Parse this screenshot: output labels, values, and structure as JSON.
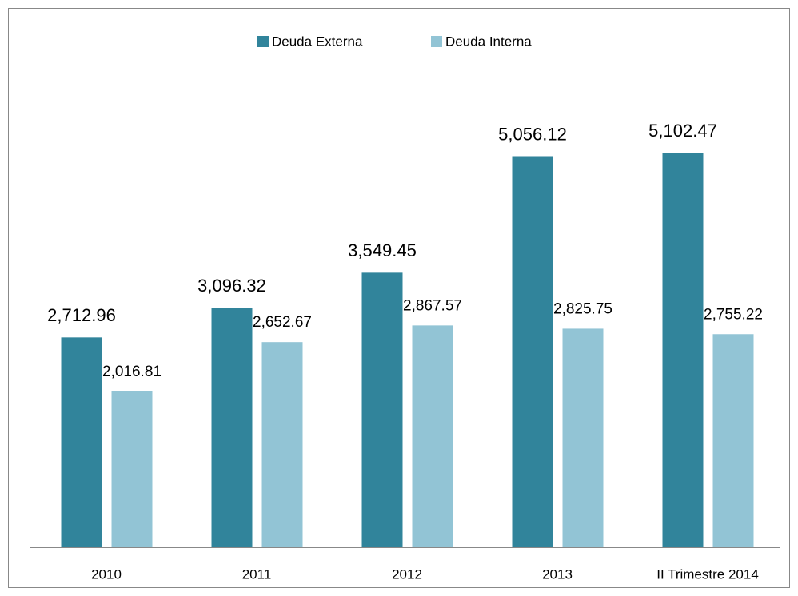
{
  "chart_data": {
    "type": "bar",
    "categories": [
      "2010",
      "2011",
      "2012",
      "2013",
      "II Trimestre 2014"
    ],
    "series": [
      {
        "name": "Deuda Externa",
        "color": "#31849b",
        "values": [
          2712.96,
          3096.32,
          3549.45,
          5056.12,
          5102.47
        ],
        "value_labels": [
          "2,712.96",
          "3,096.32",
          "3,549.45",
          "5,056.12",
          "5,102.47"
        ]
      },
      {
        "name": "Deuda Interna",
        "color": "#92c4d5",
        "values": [
          2016.81,
          2652.67,
          2867.57,
          2825.75,
          2755.22
        ],
        "value_labels": [
          "2,016.81",
          "2,652.67",
          "2,867.57",
          "2,825.75",
          "2,755.22"
        ]
      }
    ],
    "legend": "top"
  }
}
